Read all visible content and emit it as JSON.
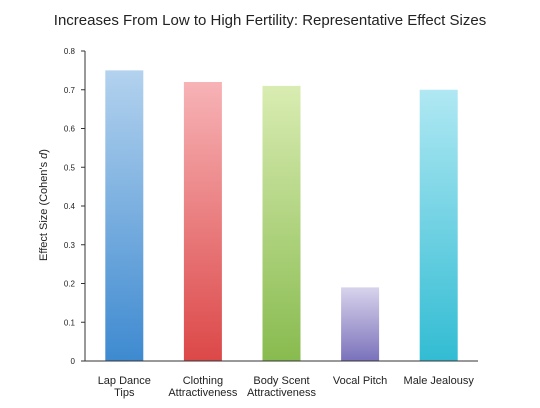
{
  "chart_data": {
    "type": "bar",
    "title": "Increases From Low to High Fertility: Representative Effect Sizes",
    "xlabel": "",
    "ylabel": "Effect Size (Cohen's d)",
    "ylim": [
      0,
      0.8
    ],
    "yticks": [
      "0",
      "0.1",
      "0.2",
      "0.3",
      "0.4",
      "0.5",
      "0.6",
      "0.7",
      "0.8"
    ],
    "categories": [
      [
        "Lap Dance",
        "Tips"
      ],
      [
        "Clothing",
        "Attractiveness"
      ],
      [
        "Body Scent",
        "Attractiveness"
      ],
      [
        "Vocal Pitch"
      ],
      [
        "Male Jealousy"
      ]
    ],
    "values": [
      0.75,
      0.72,
      0.71,
      0.19,
      0.7
    ],
    "colors": [
      [
        "#b3d2ee",
        "#3e8ad0"
      ],
      [
        "#f7b3b6",
        "#dc4848"
      ],
      [
        "#d9ecb2",
        "#88bb4f"
      ],
      [
        "#d8d3ec",
        "#7a72bb"
      ],
      [
        "#b0e8f3",
        "#32bcd3"
      ]
    ],
    "grid": false,
    "legend": "none"
  }
}
